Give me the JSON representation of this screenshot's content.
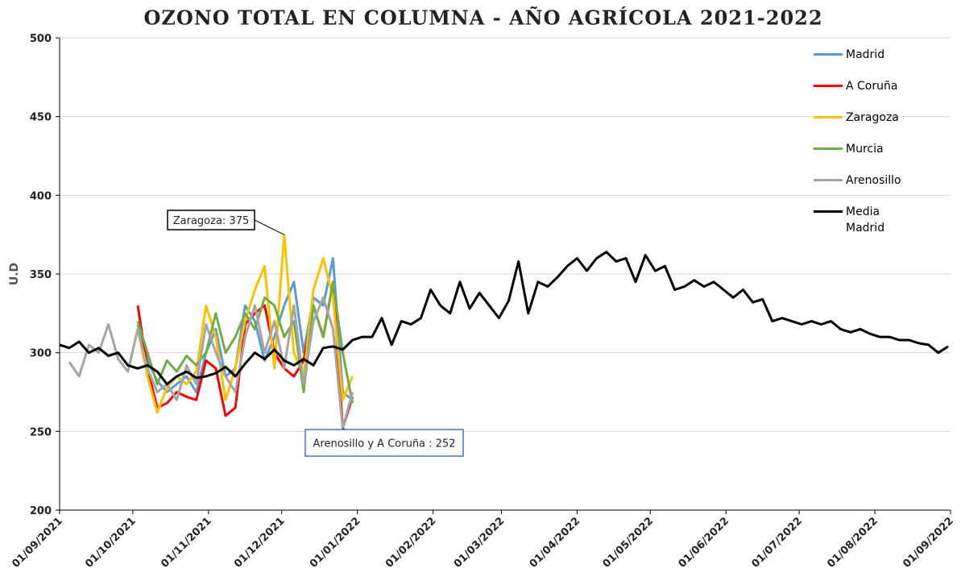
{
  "chart_data": {
    "type": "line",
    "title": "OZONO TOTAL EN COLUMNA - AÑO AGRÍCOLA 2021-2022",
    "y_label": "U.D",
    "ylim": [
      200,
      500
    ],
    "yticks": [
      200,
      250,
      300,
      350,
      400,
      450,
      500
    ],
    "grid": true,
    "xlim": [
      "2021-09-01",
      "2022-09-01"
    ],
    "xticks": [
      {
        "value": "2021-09-01",
        "label": "01/09/2021"
      },
      {
        "value": "2021-10-01",
        "label": "01/10/2021"
      },
      {
        "value": "2021-11-01",
        "label": "01/11/2021"
      },
      {
        "value": "2021-12-01",
        "label": "01/12/2021"
      },
      {
        "value": "2022-01-01",
        "label": "01/01/2022"
      },
      {
        "value": "2022-02-01",
        "label": "01/02/2022"
      },
      {
        "value": "2022-03-01",
        "label": "01/03/2022"
      },
      {
        "value": "2022-04-01",
        "label": "01/04/2022"
      },
      {
        "value": "2022-05-01",
        "label": "01/05/2022"
      },
      {
        "value": "2022-06-01",
        "label": "01/06/2022"
      },
      {
        "value": "2022-07-01",
        "label": "01/07/2022"
      },
      {
        "value": "2022-08-01",
        "label": "01/08/2022"
      },
      {
        "value": "2022-09-01",
        "label": "01/09/2022"
      }
    ],
    "series": [
      {
        "name": "Madrid",
        "color": "#5b9bd5",
        "x": [
          "2021-10-03",
          "2021-10-07",
          "2021-10-11",
          "2021-10-15",
          "2021-10-19",
          "2021-10-23",
          "2021-10-27",
          "2021-10-31",
          "2021-11-04",
          "2021-11-08",
          "2021-11-12",
          "2021-11-16",
          "2021-11-20",
          "2021-11-24",
          "2021-11-28",
          "2021-12-02",
          "2021-12-06",
          "2021-12-10",
          "2021-12-14",
          "2021-12-18",
          "2021-12-22",
          "2021-12-26",
          "2021-12-30"
        ],
        "values": [
          318,
          295,
          282,
          275,
          280,
          285,
          275,
          300,
          315,
          285,
          290,
          330,
          320,
          295,
          310,
          330,
          345,
          300,
          335,
          330,
          360,
          275,
          270
        ]
      },
      {
        "name": "A Coruña",
        "color": "#ff0000",
        "x": [
          "2021-10-03",
          "2021-10-07",
          "2021-10-11",
          "2021-10-15",
          "2021-10-19",
          "2021-10-23",
          "2021-10-27",
          "2021-10-31",
          "2021-11-04",
          "2021-11-08",
          "2021-11-12",
          "2021-11-16",
          "2021-11-20",
          "2021-11-24",
          "2021-11-28",
          "2021-12-02",
          "2021-12-06",
          "2021-12-10",
          "2021-12-14",
          "2021-12-18",
          "2021-12-22",
          "2021-12-26",
          "2021-12-30"
        ],
        "values": [
          330,
          290,
          265,
          268,
          275,
          272,
          270,
          295,
          290,
          260,
          265,
          318,
          325,
          330,
          300,
          290,
          285,
          295,
          330,
          310,
          345,
          252,
          272
        ]
      },
      {
        "name": "Zaragoza",
        "color": "#ffc000",
        "x": [
          "2021-10-03",
          "2021-10-07",
          "2021-10-11",
          "2021-10-15",
          "2021-10-19",
          "2021-10-23",
          "2021-10-27",
          "2021-10-31",
          "2021-11-04",
          "2021-11-08",
          "2021-11-12",
          "2021-11-16",
          "2021-11-20",
          "2021-11-24",
          "2021-11-28",
          "2021-12-02",
          "2021-12-06",
          "2021-12-10",
          "2021-12-14",
          "2021-12-18",
          "2021-12-22",
          "2021-12-26",
          "2021-12-30"
        ],
        "values": [
          315,
          285,
          262,
          278,
          285,
          280,
          288,
          330,
          310,
          270,
          290,
          320,
          340,
          355,
          290,
          375,
          300,
          285,
          340,
          360,
          335,
          270,
          285
        ]
      },
      {
        "name": "Murcia",
        "color": "#70ad47",
        "x": [
          "2021-10-03",
          "2021-10-07",
          "2021-10-11",
          "2021-10-15",
          "2021-10-19",
          "2021-10-23",
          "2021-10-27",
          "2021-10-31",
          "2021-11-04",
          "2021-11-08",
          "2021-11-12",
          "2021-11-16",
          "2021-11-20",
          "2021-11-24",
          "2021-11-28",
          "2021-12-02",
          "2021-12-06",
          "2021-12-10",
          "2021-12-14",
          "2021-12-18",
          "2021-12-22",
          "2021-12-26",
          "2021-12-30"
        ],
        "values": [
          320,
          300,
          280,
          295,
          288,
          298,
          292,
          300,
          325,
          300,
          310,
          325,
          315,
          335,
          330,
          310,
          320,
          275,
          330,
          310,
          345,
          300,
          268
        ]
      },
      {
        "name": "Arenosillo",
        "color": "#a5a5a5",
        "x": [
          "2021-09-05",
          "2021-09-09",
          "2021-09-13",
          "2021-09-17",
          "2021-09-21",
          "2021-09-25",
          "2021-09-29",
          "2021-10-03",
          "2021-10-07",
          "2021-10-11",
          "2021-10-15",
          "2021-10-19",
          "2021-10-23",
          "2021-10-27",
          "2021-10-31",
          "2021-11-04",
          "2021-11-08",
          "2021-11-12",
          "2021-11-16",
          "2021-11-20",
          "2021-11-24",
          "2021-11-28",
          "2021-12-02",
          "2021-12-06",
          "2021-12-10",
          "2021-12-14",
          "2021-12-18",
          "2021-12-22",
          "2021-12-26",
          "2021-12-30"
        ],
        "values": [
          294,
          285,
          305,
          300,
          318,
          296,
          288,
          315,
          290,
          275,
          280,
          270,
          292,
          280,
          318,
          300,
          285,
          275,
          310,
          330,
          300,
          320,
          290,
          330,
          280,
          320,
          335,
          315,
          252,
          275
        ]
      },
      {
        "name": "Media Madrid",
        "color": "#000000",
        "x": [
          "2021-09-01",
          "2021-09-05",
          "2021-09-09",
          "2021-09-13",
          "2021-09-17",
          "2021-09-21",
          "2021-09-25",
          "2021-09-29",
          "2021-10-03",
          "2021-10-07",
          "2021-10-11",
          "2021-10-15",
          "2021-10-19",
          "2021-10-23",
          "2021-10-27",
          "2021-10-31",
          "2021-11-04",
          "2021-11-08",
          "2021-11-12",
          "2021-11-16",
          "2021-11-20",
          "2021-11-24",
          "2021-11-28",
          "2021-12-02",
          "2021-12-06",
          "2021-12-10",
          "2021-12-14",
          "2021-12-18",
          "2021-12-22",
          "2021-12-26",
          "2021-12-30",
          "2022-01-03",
          "2022-01-07",
          "2022-01-11",
          "2022-01-15",
          "2022-01-19",
          "2022-01-23",
          "2022-01-27",
          "2022-01-31",
          "2022-02-04",
          "2022-02-08",
          "2022-02-12",
          "2022-02-16",
          "2022-02-20",
          "2022-02-24",
          "2022-02-28",
          "2022-03-04",
          "2022-03-08",
          "2022-03-12",
          "2022-03-16",
          "2022-03-20",
          "2022-03-24",
          "2022-03-28",
          "2022-04-01",
          "2022-04-05",
          "2022-04-09",
          "2022-04-13",
          "2022-04-17",
          "2022-04-21",
          "2022-04-25",
          "2022-04-29",
          "2022-05-03",
          "2022-05-07",
          "2022-05-11",
          "2022-05-15",
          "2022-05-19",
          "2022-05-23",
          "2022-05-27",
          "2022-05-31",
          "2022-06-04",
          "2022-06-08",
          "2022-06-12",
          "2022-06-16",
          "2022-06-20",
          "2022-06-24",
          "2022-06-28",
          "2022-07-02",
          "2022-07-06",
          "2022-07-10",
          "2022-07-14",
          "2022-07-18",
          "2022-07-22",
          "2022-07-26",
          "2022-07-30",
          "2022-08-03",
          "2022-08-07",
          "2022-08-11",
          "2022-08-15",
          "2022-08-19",
          "2022-08-23",
          "2022-08-27",
          "2022-08-31"
        ],
        "values": [
          305,
          303,
          307,
          300,
          303,
          298,
          300,
          292,
          290,
          292,
          288,
          280,
          285,
          288,
          284,
          285,
          287,
          291,
          285,
          293,
          300,
          296,
          302,
          295,
          292,
          296,
          292,
          303,
          304,
          302,
          308,
          310,
          310,
          322,
          305,
          320,
          318,
          322,
          340,
          330,
          325,
          345,
          328,
          338,
          330,
          322,
          333,
          358,
          325,
          345,
          342,
          348,
          355,
          360,
          352,
          360,
          364,
          358,
          360,
          345,
          362,
          352,
          355,
          340,
          342,
          346,
          342,
          345,
          340,
          335,
          340,
          332,
          334,
          320,
          322,
          320,
          318,
          320,
          318,
          320,
          315,
          313,
          315,
          312,
          310,
          310,
          308,
          308,
          306,
          305,
          300,
          304
        ]
      }
    ],
    "annotations": [
      {
        "text": "Zaragoza: 375",
        "series": 2,
        "index": 15
      },
      {
        "text": "Arenosillo y A Coruña : 252",
        "series": 4,
        "index": 28
      }
    ]
  }
}
